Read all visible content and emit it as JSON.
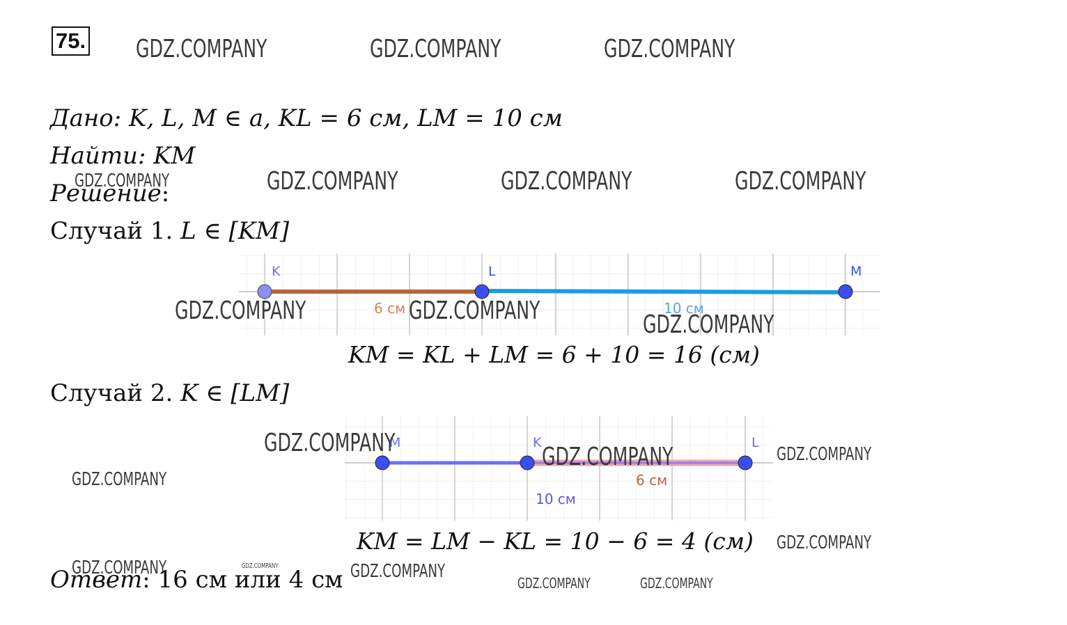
{
  "problem_number": "75.",
  "given": {
    "label": "Дано",
    "expr": ": K, L, M ∈ a, KL = 6 см, LM  =  10 см"
  },
  "find": {
    "label": "Найти",
    "expr": ": KM"
  },
  "solution": {
    "label": "Решение",
    "colon": ":"
  },
  "case1": {
    "label": "Случай 1. ",
    "cond": "L ∈ [KM]",
    "points": {
      "K": "K",
      "L": "L",
      "M": "M"
    },
    "seg_kl": "6 см",
    "seg_lm": "10 см",
    "equation": "KM = KL + LM = 6 + 10 = 16 (см)",
    "colors": {
      "kl": "#b5653f",
      "lm": "#1e9be0",
      "point": "#3b4ff0"
    }
  },
  "case2": {
    "label": "Случай 2. ",
    "cond": "K ∈ [LM]",
    "points": {
      "M": "M",
      "K": "K",
      "L": "L"
    },
    "seg_kl": "6 см",
    "seg_lm": "10 см",
    "equation": "KM = LM − KL = 10 − 6 = 4 (см)",
    "colors": {
      "lm": "#6f6ff0",
      "kl": "#f0a0a8",
      "point": "#3b4ff0"
    }
  },
  "answer": {
    "label": "Ответ",
    "text": ": 16 см или 4 см"
  },
  "watermark": "GDZ.COMPANY"
}
